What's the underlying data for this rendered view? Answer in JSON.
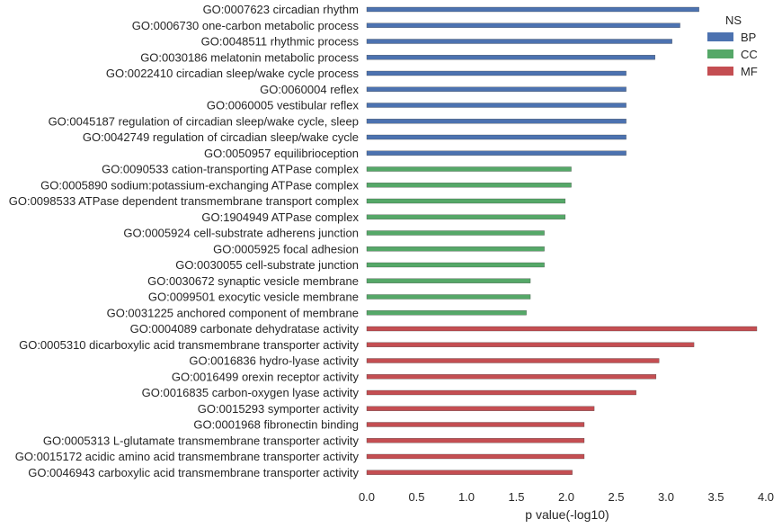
{
  "chart_data": {
    "type": "bar",
    "orientation": "horizontal",
    "title": "",
    "xlabel": "p value(-log10)",
    "ylabel": "",
    "xlim": [
      0,
      4.0
    ],
    "xticks": [
      "0.0",
      "0.5",
      "1.0",
      "1.5",
      "2.0",
      "2.5",
      "3.0",
      "3.5",
      "4.0"
    ],
    "grid": false,
    "legend": {
      "title": "NS",
      "placement": "top-right",
      "entries": [
        {
          "name": "BP",
          "color": "#4c72b0"
        },
        {
          "name": "CC",
          "color": "#55a868"
        },
        {
          "name": "MF",
          "color": "#c44e52"
        }
      ]
    },
    "bars": [
      {
        "label": "GO:0007623 circadian rhythm",
        "value": 3.33,
        "group": "BP"
      },
      {
        "label": "GO:0006730 one-carbon metabolic process",
        "value": 3.14,
        "group": "BP"
      },
      {
        "label": "GO:0048511 rhythmic process",
        "value": 3.06,
        "group": "BP"
      },
      {
        "label": "GO:0030186 melatonin metabolic process",
        "value": 2.89,
        "group": "BP"
      },
      {
        "label": "GO:0022410 circadian sleep/wake cycle process",
        "value": 2.6,
        "group": "BP"
      },
      {
        "label": "GO:0060004 reflex",
        "value": 2.6,
        "group": "BP"
      },
      {
        "label": "GO:0060005 vestibular reflex",
        "value": 2.6,
        "group": "BP"
      },
      {
        "label": "GO:0045187 regulation of circadian sleep/wake cycle, sleep",
        "value": 2.6,
        "group": "BP"
      },
      {
        "label": "GO:0042749 regulation of circadian sleep/wake cycle",
        "value": 2.6,
        "group": "BP"
      },
      {
        "label": "GO:0050957 equilibrioception",
        "value": 2.6,
        "group": "BP"
      },
      {
        "label": "GO:0090533 cation-transporting ATPase complex",
        "value": 2.05,
        "group": "CC"
      },
      {
        "label": "GO:0005890 sodium:potassium-exchanging ATPase complex",
        "value": 2.05,
        "group": "CC"
      },
      {
        "label": "GO:0098533 ATPase dependent transmembrane transport complex",
        "value": 1.99,
        "group": "CC"
      },
      {
        "label": "GO:1904949 ATPase complex",
        "value": 1.99,
        "group": "CC"
      },
      {
        "label": "GO:0005924 cell-substrate adherens junction",
        "value": 1.78,
        "group": "CC"
      },
      {
        "label": "GO:0005925 focal adhesion",
        "value": 1.78,
        "group": "CC"
      },
      {
        "label": "GO:0030055 cell-substrate junction",
        "value": 1.78,
        "group": "CC"
      },
      {
        "label": "GO:0030672 synaptic vesicle membrane",
        "value": 1.64,
        "group": "CC"
      },
      {
        "label": "GO:0099501 exocytic vesicle membrane",
        "value": 1.64,
        "group": "CC"
      },
      {
        "label": "GO:0031225 anchored component of membrane",
        "value": 1.6,
        "group": "CC"
      },
      {
        "label": "GO:0004089 carbonate dehydratase activity",
        "value": 3.91,
        "group": "MF"
      },
      {
        "label": "GO:0005310 dicarboxylic acid transmembrane transporter activity",
        "value": 3.28,
        "group": "MF"
      },
      {
        "label": "GO:0016836 hydro-lyase activity",
        "value": 2.93,
        "group": "MF"
      },
      {
        "label": "GO:0016499 orexin receptor activity",
        "value": 2.9,
        "group": "MF"
      },
      {
        "label": "GO:0016835 carbon-oxygen lyase activity",
        "value": 2.7,
        "group": "MF"
      },
      {
        "label": "GO:0015293 symporter activity",
        "value": 2.28,
        "group": "MF"
      },
      {
        "label": "GO:0001968 fibronectin binding",
        "value": 2.18,
        "group": "MF"
      },
      {
        "label": "GO:0005313 L-glutamate transmembrane transporter activity",
        "value": 2.18,
        "group": "MF"
      },
      {
        "label": "GO:0015172 acidic amino acid transmembrane transporter activity",
        "value": 2.18,
        "group": "MF"
      },
      {
        "label": "GO:0046943 carboxylic acid transmembrane transporter activity",
        "value": 2.06,
        "group": "MF"
      }
    ]
  }
}
